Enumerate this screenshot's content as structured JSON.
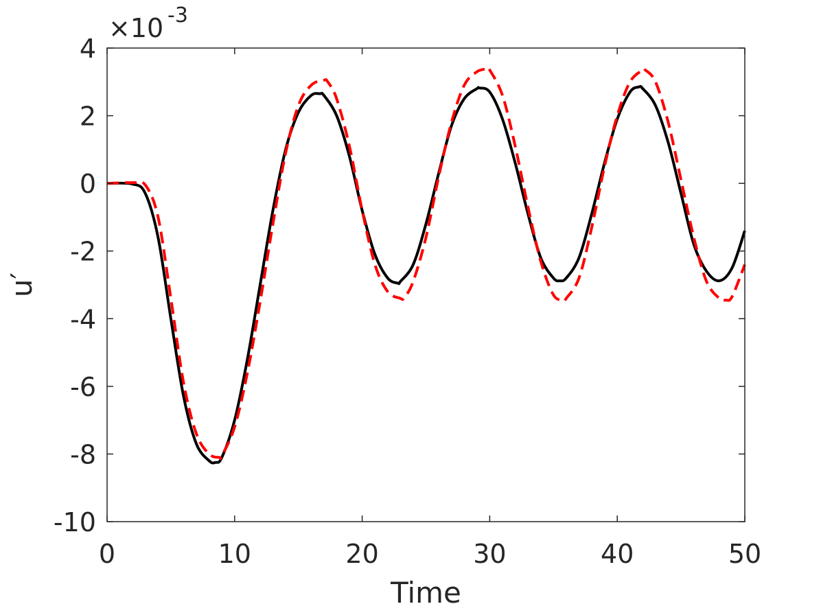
{
  "chart_data": {
    "type": "line",
    "xlabel": "Time",
    "ylabel": "u′",
    "xlim": [
      0,
      50
    ],
    "ylim": [
      -10,
      4
    ],
    "y_scale_factor": "×10",
    "y_scale_exponent": "-3",
    "xticks": [
      0,
      10,
      20,
      30,
      40,
      50
    ],
    "xtick_labels": [
      "0",
      "10",
      "20",
      "30",
      "40",
      "50"
    ],
    "yticks": [
      -10,
      -8,
      -6,
      -4,
      -2,
      0,
      2,
      4
    ],
    "ytick_labels": [
      "-10",
      "-8",
      "-6",
      "-4",
      "-2",
      "0",
      "2",
      "4"
    ],
    "grid": false,
    "series": [
      {
        "color": "#000000",
        "style": "solid",
        "x": [
          0,
          2,
          3,
          4,
          5,
          6,
          7,
          8,
          8.5,
          9,
          10,
          11,
          12,
          13,
          14,
          15,
          16,
          16.7,
          17,
          18,
          19,
          20,
          21,
          22,
          22.8,
          23,
          24,
          25,
          26,
          27,
          28,
          29,
          29.2,
          30,
          31,
          32,
          33,
          34,
          35,
          35.5,
          36,
          37,
          38,
          39,
          40,
          41,
          41.7,
          42,
          43,
          44,
          45,
          46,
          47,
          48,
          49,
          50
        ],
        "values": [
          0,
          -0.02,
          -0.3,
          -1.6,
          -4.0,
          -6.3,
          -7.7,
          -8.2,
          -8.25,
          -8.1,
          -7.0,
          -5.2,
          -3.0,
          -0.8,
          1.0,
          2.1,
          2.6,
          2.65,
          2.6,
          2.0,
          0.8,
          -0.8,
          -2.1,
          -2.8,
          -2.95,
          -2.9,
          -2.4,
          -1.2,
          0.3,
          1.7,
          2.5,
          2.8,
          2.82,
          2.7,
          1.9,
          0.6,
          -0.9,
          -2.2,
          -2.8,
          -2.88,
          -2.8,
          -2.2,
          -0.9,
          0.6,
          1.9,
          2.7,
          2.85,
          2.8,
          2.3,
          1.2,
          -0.3,
          -1.8,
          -2.6,
          -2.88,
          -2.5,
          -1.4
        ]
      },
      {
        "color": "#ff0000",
        "style": "dashed",
        "x": [
          0,
          2,
          3,
          4,
          5,
          6,
          7,
          8,
          8.8,
          9,
          10,
          11,
          12,
          13,
          14,
          15,
          16,
          17,
          17.3,
          18,
          19,
          20,
          21,
          22,
          23,
          23.3,
          24,
          25,
          26,
          27,
          28,
          29,
          29.8,
          30,
          31,
          32,
          33,
          34,
          35,
          35.8,
          36,
          37,
          38,
          39,
          40,
          41,
          42,
          42.2,
          43,
          44,
          45,
          46,
          47,
          48,
          48.5,
          49,
          50
        ],
        "values": [
          0,
          0.02,
          -0.05,
          -1.0,
          -3.4,
          -5.9,
          -7.4,
          -8.0,
          -8.1,
          -8.05,
          -7.2,
          -5.6,
          -3.5,
          -1.2,
          0.9,
          2.3,
          2.9,
          3.05,
          3.0,
          2.5,
          1.1,
          -0.8,
          -2.4,
          -3.2,
          -3.4,
          -3.38,
          -2.9,
          -1.6,
          0.2,
          1.8,
          2.9,
          3.3,
          3.38,
          3.35,
          2.6,
          1.1,
          -0.7,
          -2.3,
          -3.3,
          -3.45,
          -3.4,
          -2.8,
          -1.3,
          0.5,
          2.0,
          3.0,
          3.35,
          3.35,
          3.0,
          1.8,
          0.1,
          -1.6,
          -2.9,
          -3.4,
          -3.45,
          -3.35,
          -2.4
        ]
      }
    ]
  }
}
